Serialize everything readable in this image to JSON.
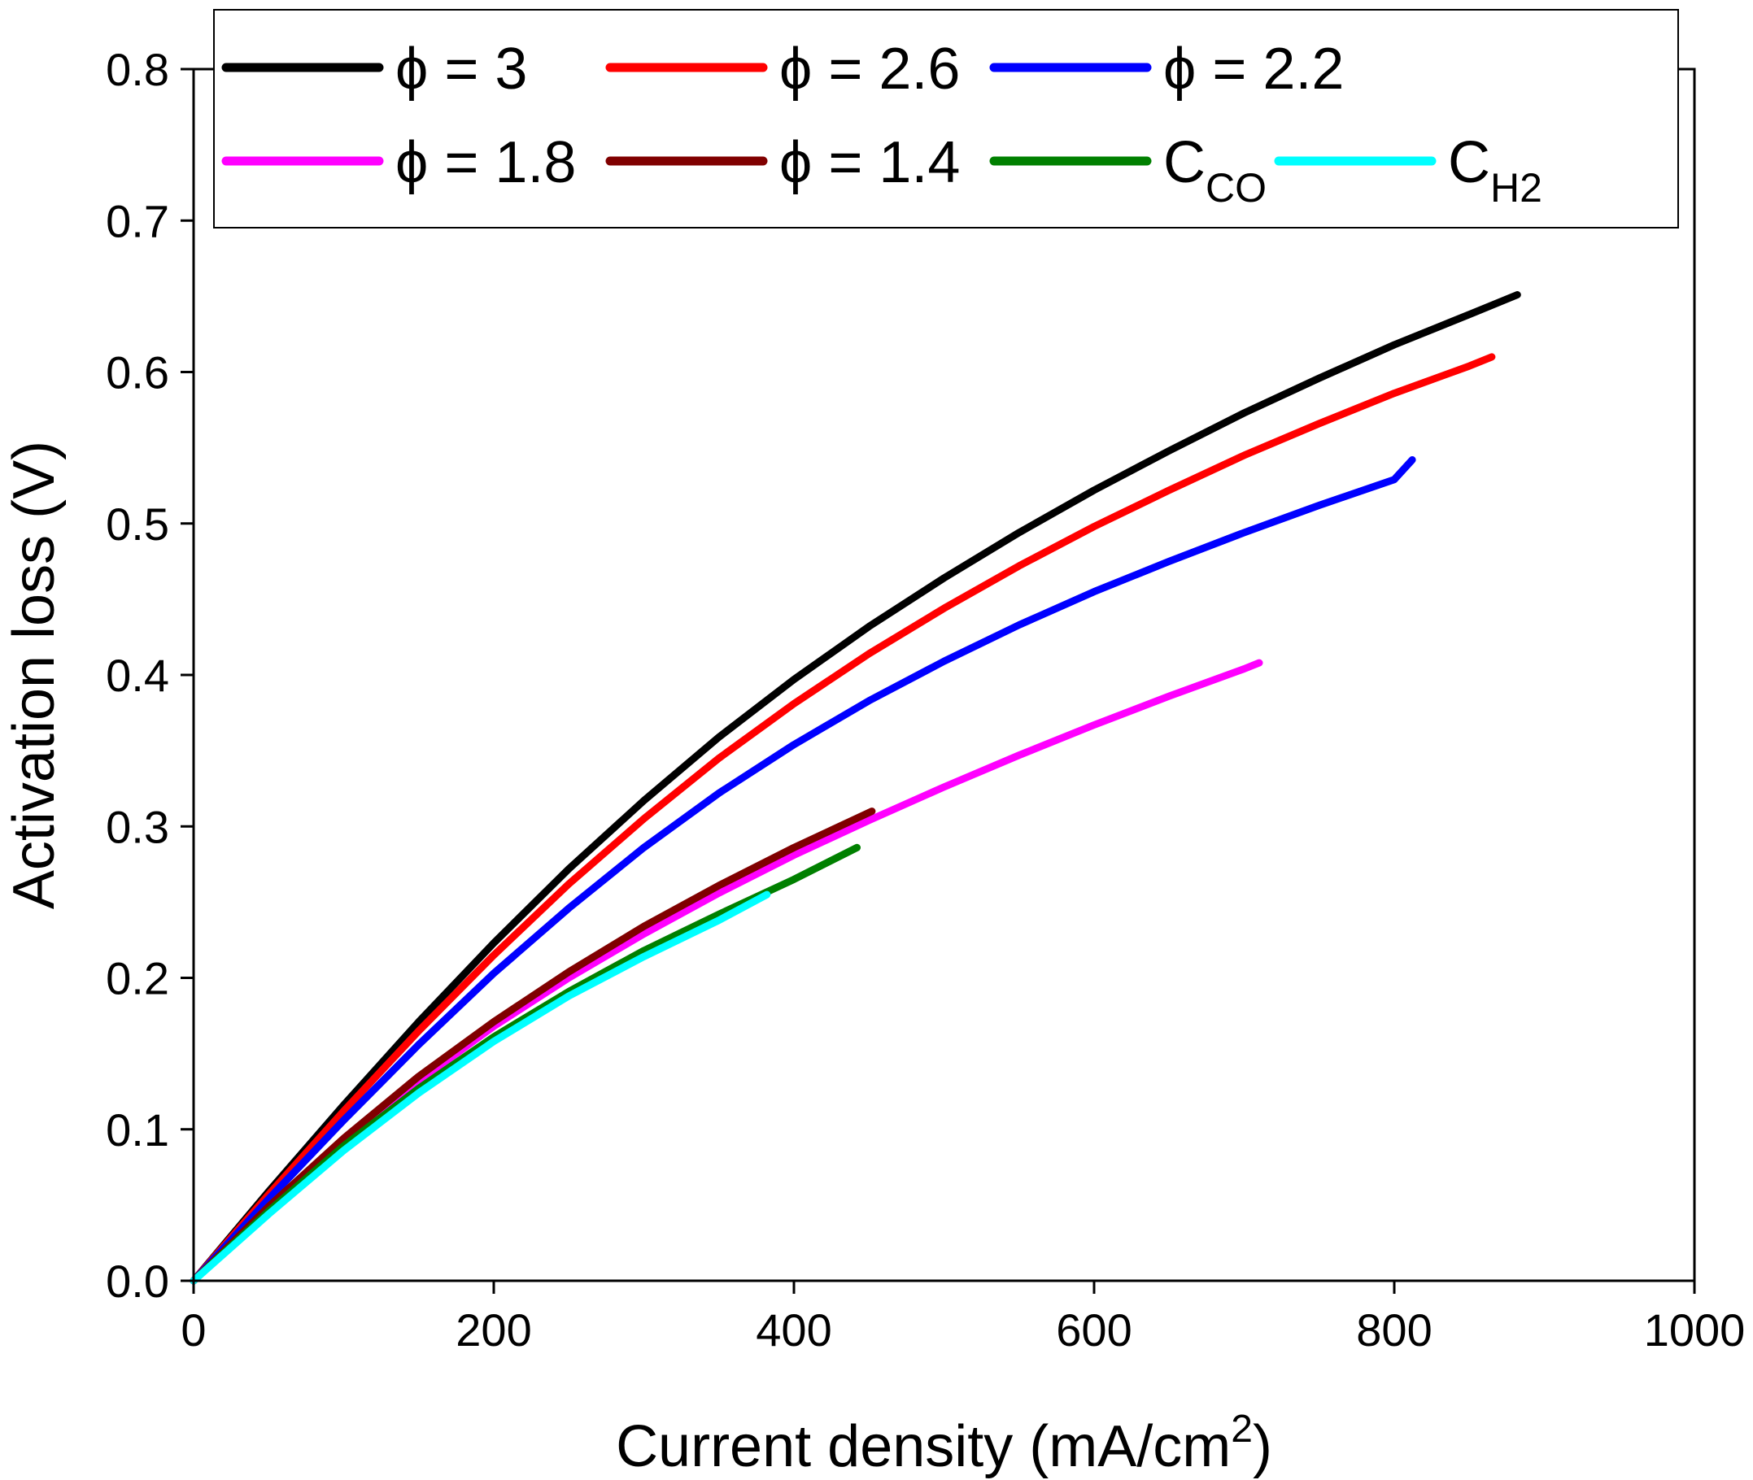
{
  "chart_data": {
    "type": "line",
    "title": "",
    "xlabel": "Current density (mA/cm",
    "xlabel_sup": "2",
    "xlabel_close": ")",
    "ylabel": "Activation loss (V)",
    "xlim": [
      0,
      1000
    ],
    "ylim": [
      0,
      0.8
    ],
    "x_ticks": [
      0,
      200,
      400,
      600,
      800,
      1000
    ],
    "x_tick_labels": [
      "0",
      "200",
      "400",
      "600",
      "800",
      "1000"
    ],
    "y_ticks": [
      0.0,
      0.1,
      0.2,
      0.3,
      0.4,
      0.5,
      0.6,
      0.7,
      0.8
    ],
    "y_tick_labels": [
      "0.0",
      "0.1",
      "0.2",
      "0.3",
      "0.4",
      "0.5",
      "0.6",
      "0.7",
      "0.8"
    ],
    "grid": false,
    "legend_position": "top",
    "series": [
      {
        "name": "ϕ = 3",
        "color": "#000000",
        "x": [
          0,
          50,
          100,
          150,
          200,
          250,
          300,
          350,
          400,
          450,
          500,
          550,
          600,
          650,
          700,
          750,
          800,
          850,
          882
        ],
        "y": [
          0,
          0.059,
          0.116,
          0.171,
          0.223,
          0.272,
          0.317,
          0.359,
          0.397,
          0.432,
          0.464,
          0.494,
          0.522,
          0.548,
          0.573,
          0.596,
          0.618,
          0.638,
          0.651
        ]
      },
      {
        "name": "ϕ = 2.6",
        "color": "#ff0000",
        "x": [
          0,
          50,
          100,
          150,
          200,
          250,
          300,
          350,
          400,
          450,
          500,
          550,
          600,
          650,
          700,
          750,
          800,
          850,
          865
        ],
        "y": [
          0,
          0.057,
          0.112,
          0.165,
          0.215,
          0.262,
          0.305,
          0.345,
          0.381,
          0.414,
          0.444,
          0.472,
          0.498,
          0.522,
          0.545,
          0.566,
          0.586,
          0.604,
          0.61
        ]
      },
      {
        "name": "ϕ = 2.2",
        "color": "#0000ff",
        "x": [
          0,
          50,
          100,
          150,
          200,
          250,
          300,
          350,
          400,
          450,
          500,
          550,
          600,
          650,
          700,
          750,
          800,
          812
        ],
        "y": [
          0,
          0.054,
          0.106,
          0.156,
          0.203,
          0.246,
          0.286,
          0.322,
          0.354,
          0.383,
          0.409,
          0.433,
          0.455,
          0.475,
          0.494,
          0.512,
          0.529,
          0.542
        ]
      },
      {
        "name": "ϕ = 1.8",
        "color": "#ff00ff",
        "x": [
          0,
          50,
          100,
          150,
          200,
          250,
          300,
          350,
          400,
          450,
          500,
          550,
          600,
          650,
          700,
          710
        ],
        "y": [
          0,
          0.048,
          0.092,
          0.132,
          0.168,
          0.2,
          0.229,
          0.256,
          0.281,
          0.304,
          0.326,
          0.347,
          0.367,
          0.386,
          0.404,
          0.408
        ]
      },
      {
        "name": "ϕ = 1.4",
        "color": "#800000",
        "x": [
          0,
          50,
          100,
          150,
          200,
          250,
          300,
          350,
          400,
          452
        ],
        "y": [
          0,
          0.049,
          0.094,
          0.135,
          0.171,
          0.204,
          0.234,
          0.261,
          0.286,
          0.31
        ]
      },
      {
        "name": "C",
        "name_sub": "CO",
        "color": "#008000",
        "x": [
          0,
          50,
          100,
          150,
          200,
          250,
          300,
          350,
          400,
          442
        ],
        "y": [
          0,
          0.046,
          0.089,
          0.127,
          0.161,
          0.191,
          0.218,
          0.242,
          0.265,
          0.286
        ]
      },
      {
        "name": "C",
        "name_sub": "H2",
        "color": "#00ffff",
        "x": [
          0,
          50,
          100,
          150,
          200,
          250,
          300,
          350,
          382
        ],
        "y": [
          0,
          0.044,
          0.086,
          0.124,
          0.158,
          0.188,
          0.214,
          0.238,
          0.255
        ]
      }
    ]
  }
}
